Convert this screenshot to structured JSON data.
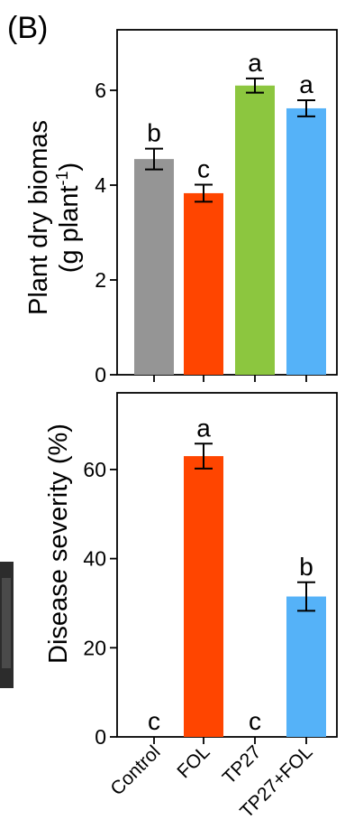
{
  "panel_label": "(B)",
  "bar_colors": [
    "#959595",
    "#ff4500",
    "#8cc63f",
    "#55b2f8"
  ],
  "chart_data": [
    {
      "type": "bar",
      "title": "",
      "categories": [
        "Control",
        "FOL",
        "TP27",
        "TP27+FOL"
      ],
      "values": [
        4.55,
        3.83,
        6.1,
        5.62
      ],
      "errors": [
        0.22,
        0.18,
        0.15,
        0.17
      ],
      "significance": [
        "b",
        "c",
        "a",
        "a"
      ],
      "ylabel_line1": "Plant dry biomas",
      "ylabel_line2_main": "(g plant",
      "ylabel_line2_sup": "-1",
      "ylabel_line2_end": ")",
      "yticks": [
        "0",
        "2",
        "4",
        "6"
      ],
      "ylim": [
        0,
        7.2
      ],
      "grid": false,
      "legend": "none"
    },
    {
      "type": "bar",
      "title": "",
      "categories": [
        "Control",
        "FOL",
        "TP27",
        "TP27+FOL"
      ],
      "values": [
        0,
        63,
        0,
        31.5
      ],
      "errors": [
        0,
        2.8,
        0,
        3.2
      ],
      "significance": [
        "c",
        "a",
        "c",
        "b"
      ],
      "ylabel": "Disease severity (%)",
      "yticks": [
        "0",
        "20",
        "40",
        "60"
      ],
      "ylim": [
        0,
        77
      ],
      "grid": false,
      "legend": "none"
    }
  ]
}
